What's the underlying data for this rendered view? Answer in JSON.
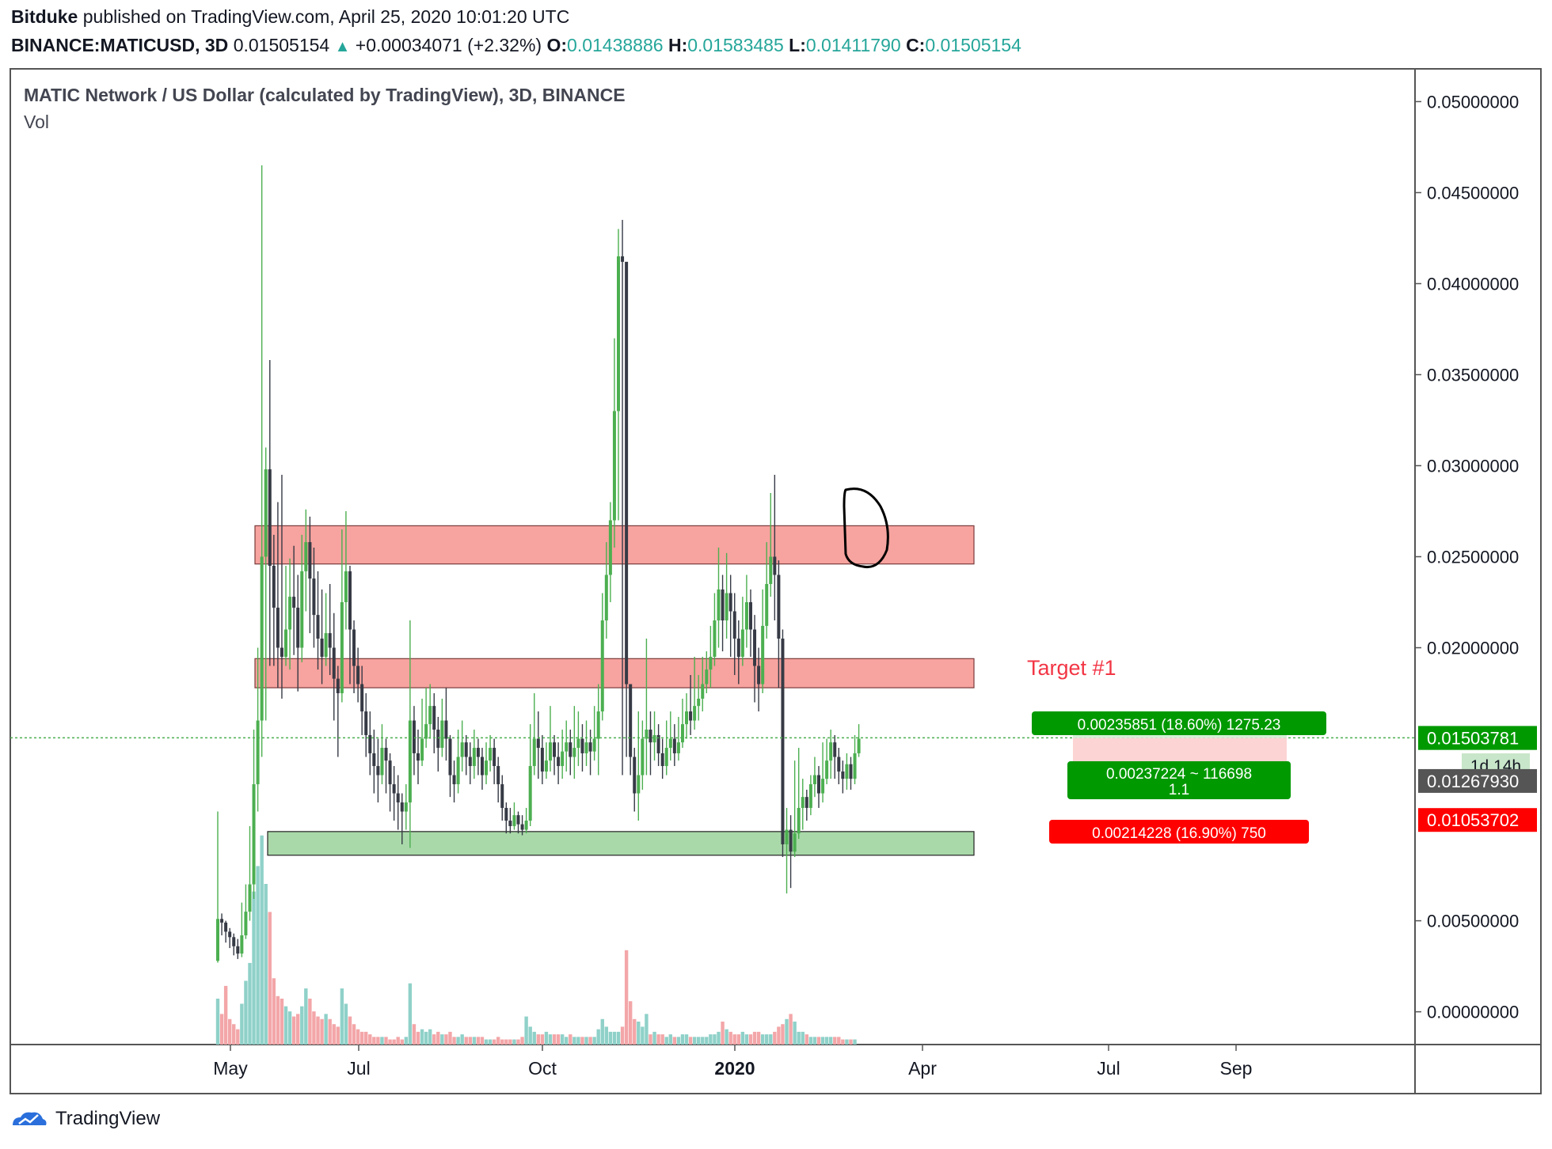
{
  "publisher_line": {
    "author": "Bitduke",
    "text": " published on TradingView.com, April 25, 2020 10:01:20 UTC"
  },
  "ticker": {
    "symbol": "BINANCE:MATICUSD, 3D",
    "last": "0.01505154",
    "arrow": "▲",
    "change": "+0.00034071 (+2.32%)",
    "o_label": "O:",
    "o": "0.01438886",
    "h_label": "H:",
    "h": "0.01583485",
    "l_label": "L:",
    "l": "0.01411790",
    "c_label": "C:",
    "c": "0.01505154"
  },
  "pane": {
    "title": "MATIC Network / US Dollar (calculated by TradingView), 3D, BINANCE",
    "vol_label": "Vol"
  },
  "footer": {
    "brand": "TradingView"
  },
  "colors": {
    "bull": "#4caf50",
    "bear": "#363a45",
    "vol_bull": "#8fd1c9",
    "vol_bear": "#f3a6a8",
    "resistance_zone": "#f7a39f",
    "support_zone": "#a9d9a9",
    "target_text": "#f23645",
    "tp_green": "#009900",
    "sl_red": "#ff0000"
  },
  "chart_data": {
    "type": "candlestick",
    "symbol": "BINANCE:MATICUSD",
    "interval": "3D",
    "yaxis_ticks": [
      "0.05000000",
      "0.04500000",
      "0.04000000",
      "0.03500000",
      "0.03000000",
      "0.02500000",
      "0.02000000",
      "0.00500000",
      "0.00000000"
    ],
    "ylim": [
      -0.0018,
      0.0518
    ],
    "xaxis_ticks": [
      {
        "label": "May",
        "bold": false
      },
      {
        "label": "Jul",
        "bold": false
      },
      {
        "label": "Oct",
        "bold": false
      },
      {
        "label": "2020",
        "bold": true
      },
      {
        "label": "Apr",
        "bold": false
      },
      {
        "label": "Jul",
        "bold": false
      },
      {
        "label": "Sep",
        "bold": false
      }
    ],
    "candles": [
      [
        0.0028,
        0.0051,
        0.011,
        0.0027
      ],
      [
        0.0051,
        0.0049,
        0.0054,
        0.0042
      ],
      [
        0.0049,
        0.0044,
        0.005,
        0.0038
      ],
      [
        0.0044,
        0.0041,
        0.0046,
        0.0035
      ],
      [
        0.0041,
        0.0036,
        0.0043,
        0.0031
      ],
      [
        0.0036,
        0.0032,
        0.004,
        0.0029
      ],
      [
        0.0032,
        0.0042,
        0.006,
        0.003
      ],
      [
        0.0042,
        0.0055,
        0.007,
        0.004
      ],
      [
        0.0055,
        0.007,
        0.0102,
        0.005
      ],
      [
        0.007,
        0.0125,
        0.0155,
        0.0062
      ],
      [
        0.0125,
        0.016,
        0.02,
        0.011
      ],
      [
        0.016,
        0.025,
        0.0465,
        0.014
      ],
      [
        0.025,
        0.0298,
        0.031,
        0.016
      ],
      [
        0.0298,
        0.0245,
        0.0358,
        0.019
      ],
      [
        0.0245,
        0.0222,
        0.0262,
        0.019
      ],
      [
        0.0222,
        0.02,
        0.028,
        0.0178
      ],
      [
        0.02,
        0.0195,
        0.0295,
        0.0172
      ],
      [
        0.0195,
        0.021,
        0.0245,
        0.019
      ],
      [
        0.021,
        0.0228,
        0.0249,
        0.0188
      ],
      [
        0.0228,
        0.0222,
        0.0256,
        0.0196
      ],
      [
        0.0222,
        0.02,
        0.024,
        0.0176
      ],
      [
        0.02,
        0.0242,
        0.0262,
        0.0192
      ],
      [
        0.0242,
        0.0258,
        0.0276,
        0.022
      ],
      [
        0.0258,
        0.0238,
        0.0272,
        0.0208
      ],
      [
        0.0238,
        0.0218,
        0.0255,
        0.02
      ],
      [
        0.0218,
        0.0205,
        0.0242,
        0.0188
      ],
      [
        0.0205,
        0.0195,
        0.0232,
        0.018
      ],
      [
        0.0195,
        0.0208,
        0.023,
        0.019
      ],
      [
        0.0208,
        0.02,
        0.0235,
        0.0185
      ],
      [
        0.02,
        0.0183,
        0.0219,
        0.016
      ],
      [
        0.0183,
        0.0175,
        0.019,
        0.014
      ],
      [
        0.0175,
        0.0225,
        0.0265,
        0.017
      ],
      [
        0.0225,
        0.0242,
        0.0275,
        0.021
      ],
      [
        0.0242,
        0.021,
        0.0245,
        0.018
      ],
      [
        0.021,
        0.019,
        0.0215,
        0.0175
      ],
      [
        0.019,
        0.018,
        0.02,
        0.017
      ],
      [
        0.018,
        0.0165,
        0.019,
        0.0152
      ],
      [
        0.0165,
        0.0152,
        0.0175,
        0.014
      ],
      [
        0.0152,
        0.0142,
        0.0165,
        0.013
      ],
      [
        0.0142,
        0.0135,
        0.0155,
        0.012
      ],
      [
        0.0135,
        0.013,
        0.015,
        0.0115
      ],
      [
        0.013,
        0.0145,
        0.0158,
        0.0125
      ],
      [
        0.0145,
        0.0138,
        0.015,
        0.012
      ],
      [
        0.0138,
        0.0125,
        0.0142,
        0.011
      ],
      [
        0.0125,
        0.012,
        0.0135,
        0.0105
      ],
      [
        0.012,
        0.0115,
        0.013,
        0.01
      ],
      [
        0.0115,
        0.011,
        0.012,
        0.0092
      ],
      [
        0.011,
        0.0115,
        0.0125,
        0.01
      ],
      [
        0.0115,
        0.016,
        0.0215,
        0.009
      ],
      [
        0.016,
        0.0142,
        0.0168,
        0.013
      ],
      [
        0.0142,
        0.0138,
        0.0155,
        0.0125
      ],
      [
        0.0138,
        0.015,
        0.0172,
        0.0135
      ],
      [
        0.015,
        0.0158,
        0.0178,
        0.0145
      ],
      [
        0.0158,
        0.0168,
        0.018,
        0.015
      ],
      [
        0.0168,
        0.0155,
        0.0175,
        0.0142
      ],
      [
        0.0155,
        0.0145,
        0.0162,
        0.0132
      ],
      [
        0.0145,
        0.016,
        0.0172,
        0.014
      ],
      [
        0.016,
        0.015,
        0.0178,
        0.0138
      ],
      [
        0.015,
        0.013,
        0.0152,
        0.0118
      ],
      [
        0.013,
        0.0125,
        0.0138,
        0.0115
      ],
      [
        0.0125,
        0.014,
        0.0155,
        0.012
      ],
      [
        0.014,
        0.0148,
        0.016,
        0.0132
      ],
      [
        0.0148,
        0.014,
        0.0152,
        0.013
      ],
      [
        0.014,
        0.0135,
        0.0148,
        0.0125
      ],
      [
        0.0135,
        0.0145,
        0.0155,
        0.0128
      ],
      [
        0.0145,
        0.014,
        0.015,
        0.013
      ],
      [
        0.014,
        0.013,
        0.0145,
        0.0122
      ],
      [
        0.013,
        0.0138,
        0.0148,
        0.0125
      ],
      [
        0.0138,
        0.0145,
        0.0152,
        0.0132
      ],
      [
        0.0145,
        0.0135,
        0.015,
        0.0125
      ],
      [
        0.0135,
        0.0125,
        0.014,
        0.0115
      ],
      [
        0.0125,
        0.0112,
        0.013,
        0.0105
      ],
      [
        0.0112,
        0.0105,
        0.0115,
        0.0098
      ],
      [
        0.0105,
        0.0102,
        0.0112,
        0.0098
      ],
      [
        0.0102,
        0.0108,
        0.0115,
        0.01
      ],
      [
        0.0108,
        0.0103,
        0.011,
        0.0098
      ],
      [
        0.0103,
        0.01,
        0.0108,
        0.0097
      ],
      [
        0.01,
        0.0105,
        0.0112,
        0.0098
      ],
      [
        0.0105,
        0.0135,
        0.0158,
        0.0102
      ],
      [
        0.0135,
        0.015,
        0.0175,
        0.013
      ],
      [
        0.015,
        0.0145,
        0.0165,
        0.0128
      ],
      [
        0.0145,
        0.0132,
        0.0152,
        0.0125
      ],
      [
        0.0132,
        0.0138,
        0.0148,
        0.0128
      ],
      [
        0.0138,
        0.0148,
        0.0168,
        0.0132
      ],
      [
        0.0148,
        0.014,
        0.0152,
        0.013
      ],
      [
        0.014,
        0.0135,
        0.0148,
        0.0125
      ],
      [
        0.0135,
        0.0143,
        0.0155,
        0.0128
      ],
      [
        0.0143,
        0.0148,
        0.016,
        0.0132
      ],
      [
        0.0148,
        0.014,
        0.0155,
        0.013
      ],
      [
        0.014,
        0.0145,
        0.0168,
        0.0128
      ],
      [
        0.0145,
        0.015,
        0.0165,
        0.0135
      ],
      [
        0.015,
        0.0142,
        0.0158,
        0.0132
      ],
      [
        0.0142,
        0.0148,
        0.016,
        0.0135
      ],
      [
        0.0148,
        0.0143,
        0.0155,
        0.013
      ],
      [
        0.0143,
        0.015,
        0.0168,
        0.0138
      ],
      [
        0.015,
        0.0165,
        0.018,
        0.013
      ],
      [
        0.0165,
        0.0215,
        0.023,
        0.016
      ],
      [
        0.0215,
        0.024,
        0.0258,
        0.0205
      ],
      [
        0.024,
        0.027,
        0.028,
        0.0225
      ],
      [
        0.027,
        0.033,
        0.037,
        0.0255
      ],
      [
        0.033,
        0.0415,
        0.043,
        0.027
      ],
      [
        0.0415,
        0.0412,
        0.0435,
        0.013
      ],
      [
        0.0412,
        0.018,
        0.0185,
        0.014
      ],
      [
        0.018,
        0.014,
        0.0152,
        0.013
      ],
      [
        0.014,
        0.012,
        0.0145,
        0.011
      ],
      [
        0.012,
        0.013,
        0.0165,
        0.0105
      ],
      [
        0.013,
        0.015,
        0.016,
        0.0122
      ],
      [
        0.015,
        0.0155,
        0.0205,
        0.013
      ],
      [
        0.0155,
        0.0148,
        0.0165,
        0.013
      ],
      [
        0.0148,
        0.0152,
        0.0165,
        0.0138
      ],
      [
        0.0152,
        0.0142,
        0.0158,
        0.0135
      ],
      [
        0.0142,
        0.0135,
        0.015,
        0.0128
      ],
      [
        0.0135,
        0.0145,
        0.016,
        0.013
      ],
      [
        0.0145,
        0.015,
        0.0165,
        0.0138
      ],
      [
        0.015,
        0.0142,
        0.0158,
        0.0135
      ],
      [
        0.0142,
        0.0148,
        0.0162,
        0.0138
      ],
      [
        0.0148,
        0.0158,
        0.0172,
        0.0145
      ],
      [
        0.0158,
        0.0165,
        0.0175,
        0.015
      ],
      [
        0.0165,
        0.016,
        0.0185,
        0.0152
      ],
      [
        0.016,
        0.0168,
        0.0195,
        0.0155
      ],
      [
        0.0168,
        0.0172,
        0.0185,
        0.016
      ],
      [
        0.0172,
        0.018,
        0.0195,
        0.0165
      ],
      [
        0.018,
        0.0188,
        0.0198,
        0.0175
      ],
      [
        0.0188,
        0.0195,
        0.0212,
        0.0178
      ],
      [
        0.0195,
        0.0215,
        0.023,
        0.019
      ],
      [
        0.0215,
        0.0232,
        0.0255,
        0.02
      ],
      [
        0.0232,
        0.0215,
        0.024,
        0.0198
      ],
      [
        0.0215,
        0.023,
        0.0252,
        0.0205
      ],
      [
        0.023,
        0.022,
        0.024,
        0.0195
      ],
      [
        0.022,
        0.0205,
        0.023,
        0.0185
      ],
      [
        0.0205,
        0.0195,
        0.0215,
        0.018
      ],
      [
        0.0195,
        0.021,
        0.0228,
        0.019
      ],
      [
        0.021,
        0.0225,
        0.024,
        0.02
      ],
      [
        0.0225,
        0.021,
        0.0232,
        0.0195
      ],
      [
        0.021,
        0.019,
        0.0218,
        0.017
      ],
      [
        0.019,
        0.018,
        0.02,
        0.0165
      ],
      [
        0.018,
        0.0212,
        0.0232,
        0.0175
      ],
      [
        0.0212,
        0.0235,
        0.0258,
        0.0205
      ],
      [
        0.0235,
        0.025,
        0.0285,
        0.0228
      ],
      [
        0.025,
        0.024,
        0.0295,
        0.0215
      ],
      [
        0.024,
        0.0205,
        0.0248,
        0.0178
      ],
      [
        0.0205,
        0.0092,
        0.021,
        0.0085
      ],
      [
        0.0092,
        0.01,
        0.0112,
        0.0065
      ],
      [
        0.01,
        0.0088,
        0.0108,
        0.0068
      ],
      [
        0.0088,
        0.0098,
        0.0138,
        0.0085
      ],
      [
        0.0098,
        0.0112,
        0.0145,
        0.0095
      ],
      [
        0.0112,
        0.0118,
        0.0128,
        0.01
      ],
      [
        0.0118,
        0.0112,
        0.0122,
        0.0105
      ],
      [
        0.0112,
        0.0125,
        0.013,
        0.0108
      ],
      [
        0.0125,
        0.013,
        0.014,
        0.0118
      ],
      [
        0.013,
        0.012,
        0.0135,
        0.0112
      ],
      [
        0.012,
        0.0128,
        0.0148,
        0.0115
      ],
      [
        0.0128,
        0.0138,
        0.015,
        0.0125
      ],
      [
        0.0138,
        0.0148,
        0.0155,
        0.0128
      ],
      [
        0.0148,
        0.014,
        0.0152,
        0.0128
      ],
      [
        0.014,
        0.0132,
        0.0145,
        0.0125
      ],
      [
        0.0132,
        0.0128,
        0.0138,
        0.012
      ],
      [
        0.0128,
        0.0136,
        0.0142,
        0.0122
      ],
      [
        0.0136,
        0.0128,
        0.014,
        0.0122
      ],
      [
        0.0128,
        0.0142,
        0.0152,
        0.0125
      ],
      [
        0.0142,
        0.015,
        0.0158,
        0.014
      ]
    ],
    "volume": [
      0.18,
      0.12,
      0.23,
      0.1,
      0.08,
      0.06,
      0.16,
      0.25,
      0.32,
      0.6,
      0.7,
      0.82,
      0.63,
      0.52,
      0.26,
      0.19,
      0.18,
      0.15,
      0.13,
      0.11,
      0.12,
      0.15,
      0.22,
      0.18,
      0.13,
      0.11,
      0.1,
      0.12,
      0.1,
      0.08,
      0.07,
      0.22,
      0.16,
      0.11,
      0.08,
      0.06,
      0.05,
      0.05,
      0.04,
      0.03,
      0.03,
      0.03,
      0.03,
      0.02,
      0.02,
      0.03,
      0.02,
      0.03,
      0.24,
      0.08,
      0.05,
      0.06,
      0.05,
      0.06,
      0.04,
      0.05,
      0.04,
      0.04,
      0.05,
      0.03,
      0.03,
      0.04,
      0.03,
      0.03,
      0.03,
      0.03,
      0.03,
      0.02,
      0.02,
      0.02,
      0.03,
      0.02,
      0.02,
      0.02,
      0.02,
      0.02,
      0.03,
      0.11,
      0.07,
      0.05,
      0.04,
      0.04,
      0.05,
      0.04,
      0.04,
      0.04,
      0.04,
      0.03,
      0.04,
      0.03,
      0.03,
      0.03,
      0.03,
      0.03,
      0.03,
      0.06,
      0.1,
      0.07,
      0.05,
      0.05,
      0.05,
      0.07,
      0.37,
      0.17,
      0.1,
      0.09,
      0.07,
      0.12,
      0.04,
      0.05,
      0.04,
      0.04,
      0.03,
      0.04,
      0.03,
      0.03,
      0.04,
      0.04,
      0.03,
      0.03,
      0.03,
      0.03,
      0.03,
      0.04,
      0.04,
      0.05,
      0.09,
      0.06,
      0.05,
      0.04,
      0.04,
      0.05,
      0.04,
      0.04,
      0.05,
      0.05,
      0.04,
      0.04,
      0.04,
      0.05,
      0.07,
      0.08,
      0.1,
      0.12,
      0.09,
      0.05,
      0.05,
      0.04,
      0.03,
      0.03,
      0.03,
      0.03,
      0.03,
      0.03,
      0.03,
      0.03,
      0.02,
      0.02,
      0.02,
      0.02
    ],
    "zones": [
      {
        "type": "resistance",
        "top": 0.0267,
        "bottom": 0.0246
      },
      {
        "type": "resistance",
        "top": 0.0194,
        "bottom": 0.0178
      },
      {
        "type": "support",
        "top": 0.0099,
        "bottom": 0.0086
      }
    ],
    "annotation": "Target #1",
    "current_price": "0.01505154",
    "countdown": "1d 14h",
    "price_labels": [
      {
        "value": "0.01503781",
        "kind": "entry"
      },
      {
        "value": "0.01267930",
        "kind": "mark"
      },
      {
        "value": "0.01053702",
        "kind": "stop"
      }
    ],
    "position_tool": {
      "target_text": "0.00235851 (18.60%) 1275.23",
      "entry_text_1": "0.00237224 ~ 116698",
      "entry_text_2": "1.1",
      "stop_text": "0.00214228 (16.90%) 750"
    }
  }
}
